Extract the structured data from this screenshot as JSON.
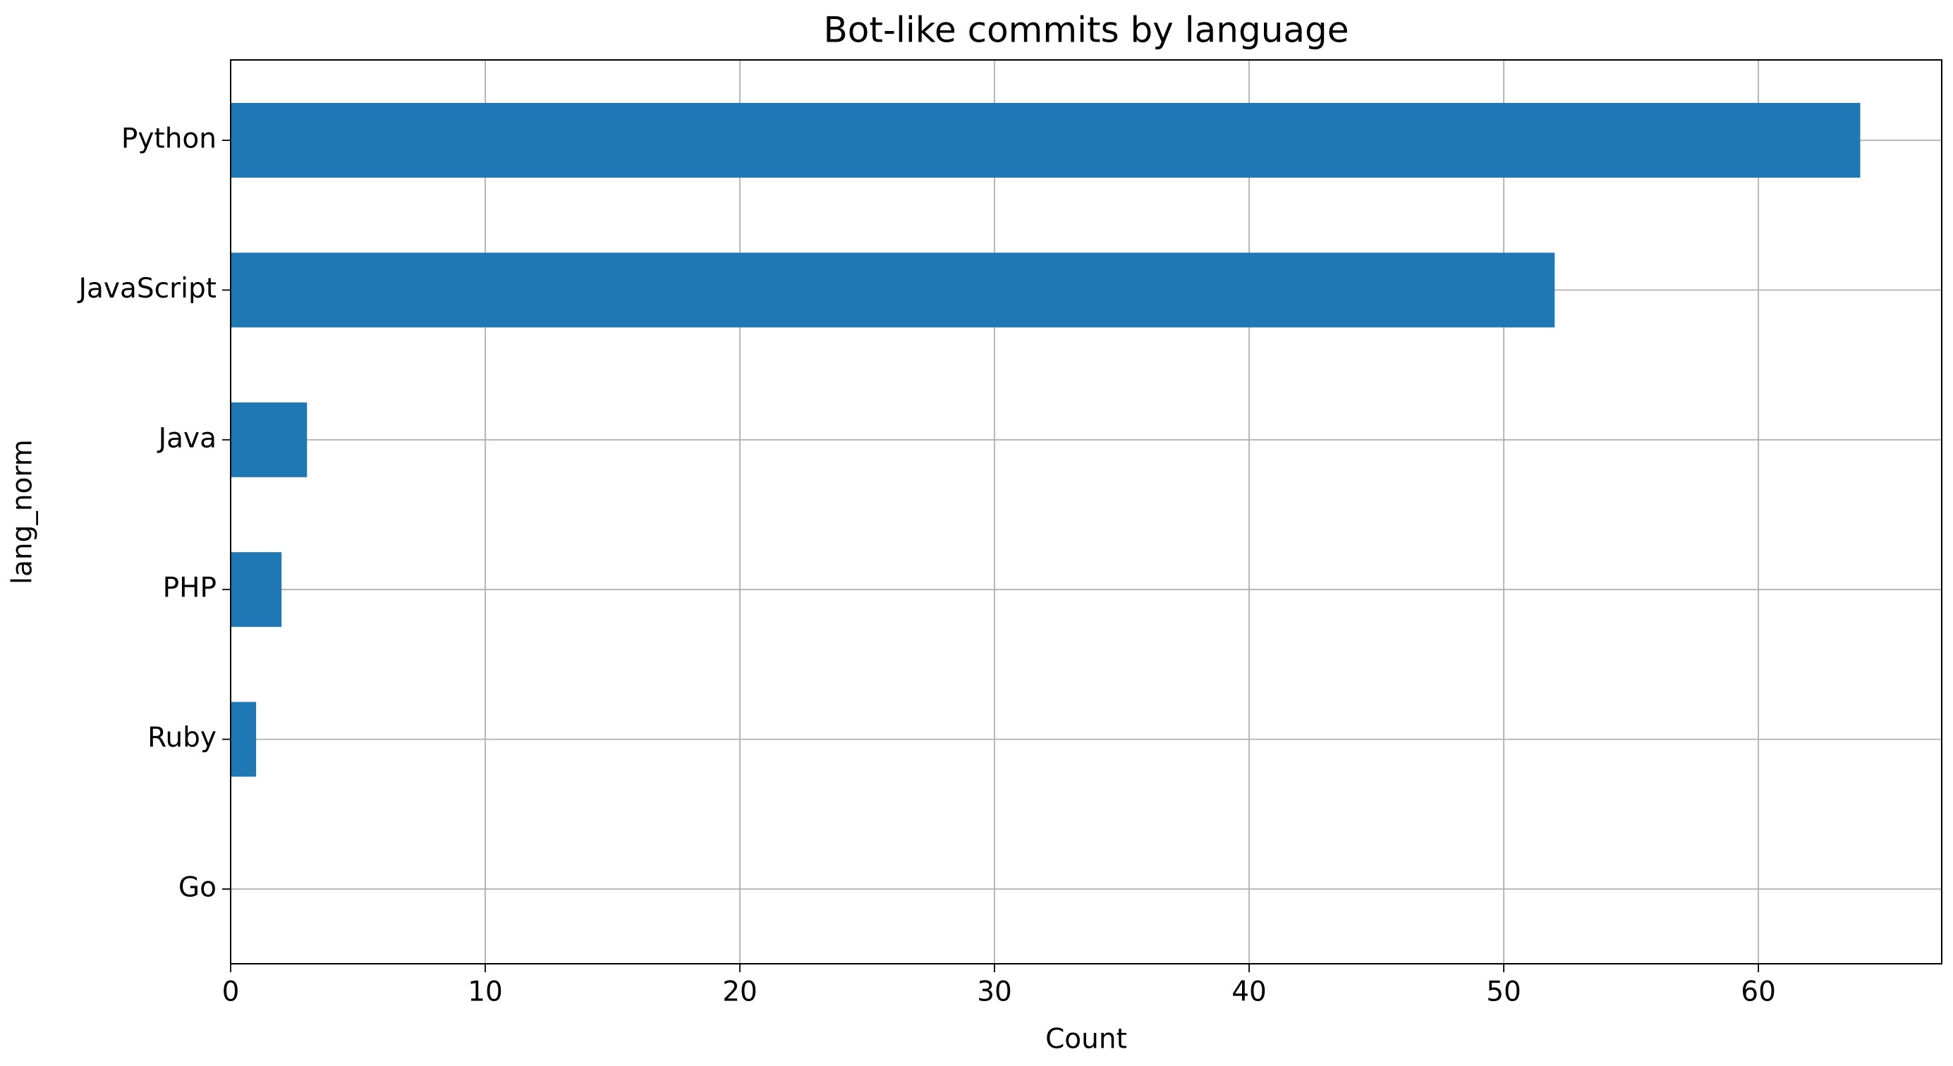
{
  "chart_data": {
    "type": "barh",
    "title": "Bot-like commits by language",
    "x_label": "Count",
    "y_label": "lang_norm",
    "categories": [
      "Python",
      "JavaScript",
      "Java",
      "PHP",
      "Ruby",
      "Go"
    ],
    "values": [
      64,
      52,
      3,
      2,
      1,
      0
    ],
    "color": "#1f77b4",
    "xlim": [
      0,
      67.2
    ],
    "xticks": [
      0,
      10,
      20,
      30,
      40,
      50,
      60
    ],
    "grid": true
  }
}
